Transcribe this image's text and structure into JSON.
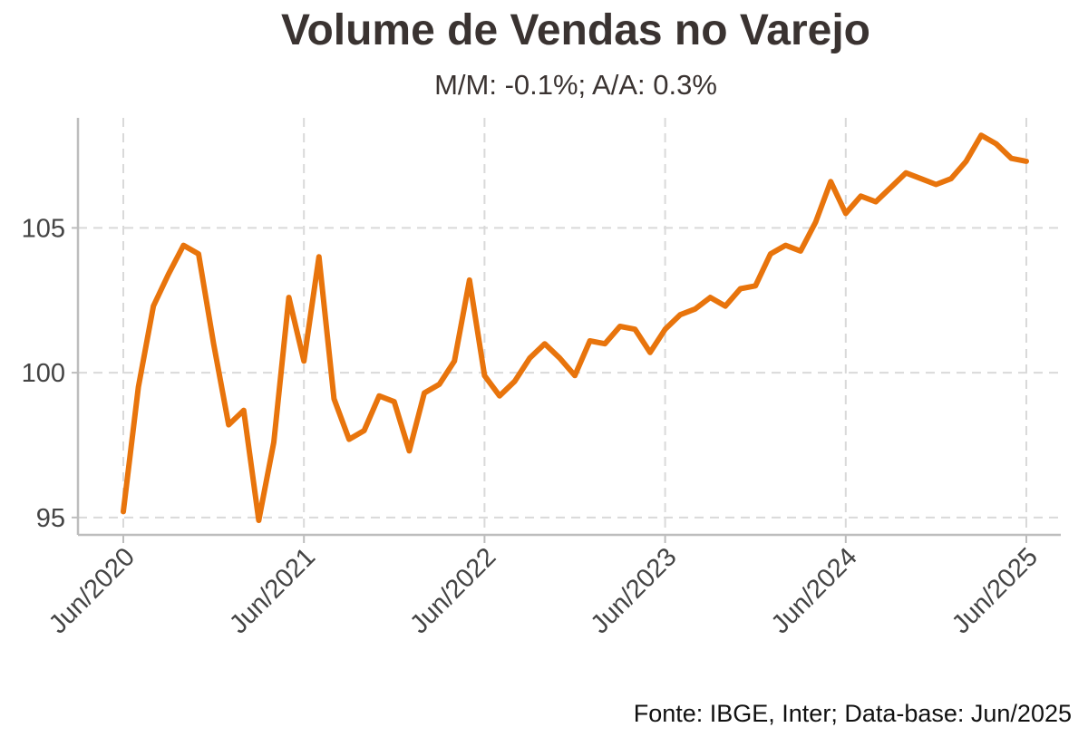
{
  "chart_data": {
    "type": "line",
    "title": "Volume de Vendas no Varejo",
    "subtitle": "M/M: -0.1%; A/A: 0.3%",
    "source": "Fonte: IBGE, Inter; Data-base: Jun/2025",
    "xlabel": "",
    "ylabel": "",
    "ylim": [
      94.4,
      108.8
    ],
    "y_ticks": [
      95,
      100,
      105
    ],
    "x_tick_labels": [
      "Jun/2020",
      "Jun/2021",
      "Jun/2022",
      "Jun/2023",
      "Jun/2024",
      "Jun/2025"
    ],
    "grid": true,
    "series": [
      {
        "color": "#E8740C",
        "x": [
          "Jun/2020",
          "Jul/2020",
          "Aug/2020",
          "Sep/2020",
          "Oct/2020",
          "Nov/2020",
          "Dec/2020",
          "Jan/2021",
          "Feb/2021",
          "Mar/2021",
          "Apr/2021",
          "May/2021",
          "Jun/2021",
          "Jul/2021",
          "Aug/2021",
          "Sep/2021",
          "Oct/2021",
          "Nov/2021",
          "Dec/2021",
          "Jan/2022",
          "Feb/2022",
          "Mar/2022",
          "Apr/2022",
          "May/2022",
          "Jun/2022",
          "Jul/2022",
          "Aug/2022",
          "Sep/2022",
          "Oct/2022",
          "Nov/2022",
          "Dec/2022",
          "Jan/2023",
          "Feb/2023",
          "Mar/2023",
          "Apr/2023",
          "May/2023",
          "Jun/2023",
          "Jul/2023",
          "Aug/2023",
          "Sep/2023",
          "Oct/2023",
          "Nov/2023",
          "Dec/2023",
          "Jan/2024",
          "Feb/2024",
          "Mar/2024",
          "Apr/2024",
          "May/2024",
          "Jun/2024",
          "Jul/2024",
          "Aug/2024",
          "Sep/2024",
          "Oct/2024",
          "Nov/2024",
          "Dec/2024",
          "Jan/2025",
          "Feb/2025",
          "Mar/2025",
          "Apr/2025",
          "May/2025",
          "Jun/2025"
        ],
        "values": [
          95.2,
          99.5,
          102.3,
          103.4,
          104.4,
          104.1,
          101.0,
          98.2,
          98.7,
          94.9,
          97.6,
          102.6,
          100.4,
          104.0,
          99.1,
          97.7,
          98.0,
          99.2,
          99.0,
          97.3,
          99.3,
          99.6,
          100.4,
          103.2,
          99.9,
          99.2,
          99.7,
          100.5,
          101.0,
          100.5,
          99.9,
          101.1,
          101.0,
          101.6,
          101.5,
          100.7,
          101.5,
          102.0,
          102.2,
          102.6,
          102.3,
          102.9,
          103.0,
          104.1,
          104.4,
          104.2,
          105.2,
          106.6,
          105.5,
          106.1,
          105.9,
          106.4,
          106.9,
          106.7,
          106.5,
          106.7,
          107.3,
          108.2,
          107.9,
          107.4,
          107.3
        ]
      }
    ]
  }
}
